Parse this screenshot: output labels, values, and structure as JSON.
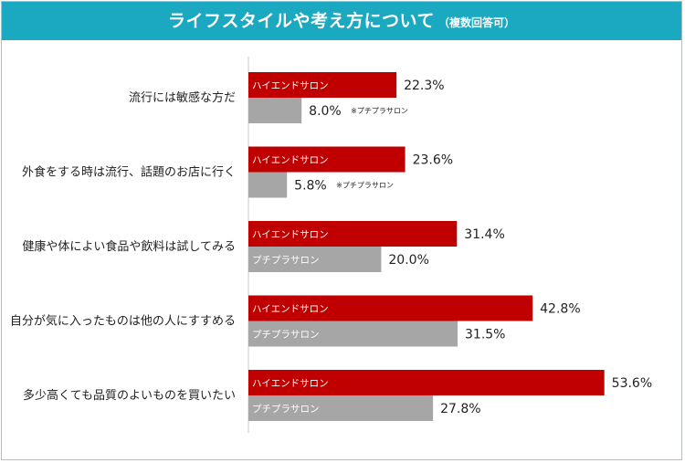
{
  "header": {
    "title": "ライフスタイルや考え方について",
    "subtitle": "（複数回答可）"
  },
  "colors": {
    "header_bg": "#1aa9c0",
    "series_high_end": "#c00000",
    "series_petit": "#a6a6a6"
  },
  "chart_data": {
    "type": "bar",
    "orientation": "horizontal",
    "categories": [
      "流行には敏感な方だ",
      "外食をする時は流行、話題のお店に行く",
      "健康や体によい食品や飲料は試してみる",
      "自分が気に入ったものは他の人にすすめる",
      "多少高くても品質のよいものを買いたい"
    ],
    "series": [
      {
        "name": "ハイエンドサロン",
        "values": [
          22.3,
          23.6,
          31.4,
          42.8,
          53.6
        ]
      },
      {
        "name": "プチプラサロン",
        "values": [
          8.0,
          5.8,
          20.0,
          31.5,
          27.8
        ]
      }
    ],
    "value_labels": [
      [
        "22.3%",
        "23.6%",
        "31.4%",
        "42.8%",
        "53.6%"
      ],
      [
        "8.0%",
        "5.8%",
        "20.0%",
        "31.5%",
        "27.8%"
      ]
    ],
    "annotations": [
      "※プチプラサロン",
      "※プチプラサロン"
    ],
    "unit": "%",
    "xlim": [
      0,
      60
    ],
    "grid": false,
    "legend": "none"
  }
}
